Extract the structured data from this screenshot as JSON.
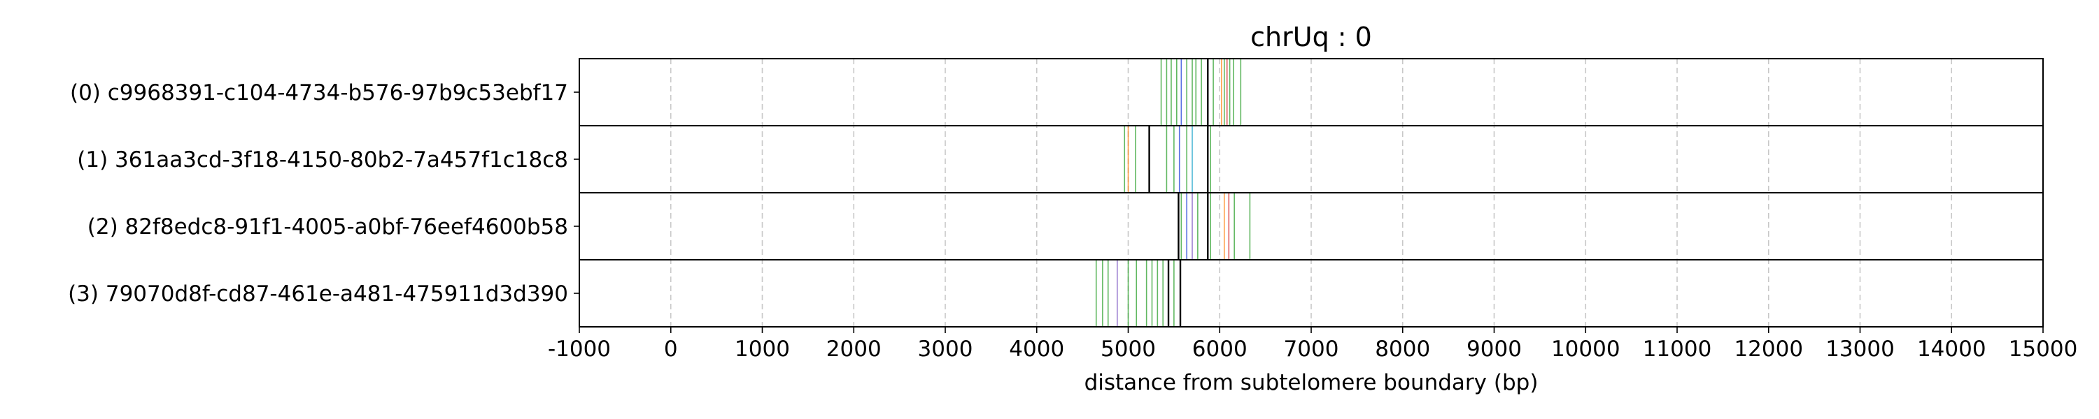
{
  "chart_data": {
    "type": "ribbon",
    "title": "chrUq : 0",
    "xlabel": "distance from subtelomere boundary (bp)",
    "ylabel": "",
    "xlim": [
      -1000,
      15000
    ],
    "xticks": [
      -1000,
      0,
      1000,
      2000,
      3000,
      4000,
      5000,
      6000,
      7000,
      8000,
      9000,
      10000,
      11000,
      12000,
      13000,
      14000,
      15000
    ],
    "tick_labels": [
      "-1000",
      "0",
      "1000",
      "2000",
      "3000",
      "4000",
      "5000",
      "6000",
      "7000",
      "8000",
      "9000",
      "10000",
      "11000",
      "12000",
      "13000",
      "14000",
      "15000"
    ],
    "grid": "x, dashed",
    "colors": {
      "green": "#2ca02c",
      "blue": "#1f3fd8",
      "orange": "#ff7f0e",
      "red": "#d62728",
      "purple": "#7e57c2",
      "cyan": "#17a2c8",
      "black": "#000000",
      "grid": "#c8c8c8"
    },
    "rows": [
      {
        "label": "(0) c9968391-c104-4734-b576-97b9c53ebf17",
        "marks": [
          {
            "x": 5360,
            "color": "green"
          },
          {
            "x": 5420,
            "color": "green"
          },
          {
            "x": 5470,
            "color": "green"
          },
          {
            "x": 5530,
            "color": "green"
          },
          {
            "x": 5580,
            "color": "blue"
          },
          {
            "x": 5640,
            "color": "green"
          },
          {
            "x": 5700,
            "color": "green"
          },
          {
            "x": 5740,
            "color": "green"
          },
          {
            "x": 5800,
            "color": "green"
          },
          {
            "x": 5870,
            "color": "black"
          },
          {
            "x": 5930,
            "color": "green"
          },
          {
            "x": 6020,
            "color": "orange"
          },
          {
            "x": 6050,
            "color": "green"
          },
          {
            "x": 6080,
            "color": "red"
          },
          {
            "x": 6110,
            "color": "green"
          },
          {
            "x": 6150,
            "color": "green"
          },
          {
            "x": 6230,
            "color": "green"
          }
        ]
      },
      {
        "label": "(1) 361aa3cd-3f18-4150-80b2-7a457f1c18c8",
        "marks": [
          {
            "x": 4960,
            "color": "green"
          },
          {
            "x": 5000,
            "color": "orange"
          },
          {
            "x": 5080,
            "color": "green"
          },
          {
            "x": 5230,
            "color": "black"
          },
          {
            "x": 5420,
            "color": "green"
          },
          {
            "x": 5500,
            "color": "green"
          },
          {
            "x": 5560,
            "color": "blue"
          },
          {
            "x": 5640,
            "color": "green"
          },
          {
            "x": 5700,
            "color": "cyan"
          },
          {
            "x": 5870,
            "color": "black"
          },
          {
            "x": 5900,
            "color": "green"
          }
        ]
      },
      {
        "label": "(2) 82f8edc8-91f1-4005-a0bf-76eef4600b58",
        "marks": [
          {
            "x": 5550,
            "color": "black"
          },
          {
            "x": 5580,
            "color": "green"
          },
          {
            "x": 5640,
            "color": "blue"
          },
          {
            "x": 5700,
            "color": "purple"
          },
          {
            "x": 5760,
            "color": "green"
          },
          {
            "x": 5870,
            "color": "black"
          },
          {
            "x": 5900,
            "color": "green"
          },
          {
            "x": 6050,
            "color": "orange"
          },
          {
            "x": 6100,
            "color": "red"
          },
          {
            "x": 6160,
            "color": "green"
          },
          {
            "x": 6330,
            "color": "green"
          }
        ]
      },
      {
        "label": "(3) 79070d8f-cd87-461e-a481-475911d3d390",
        "marks": [
          {
            "x": 4650,
            "color": "green"
          },
          {
            "x": 4720,
            "color": "green"
          },
          {
            "x": 4780,
            "color": "green"
          },
          {
            "x": 4880,
            "color": "purple"
          },
          {
            "x": 5000,
            "color": "green"
          },
          {
            "x": 5090,
            "color": "green"
          },
          {
            "x": 5200,
            "color": "green"
          },
          {
            "x": 5260,
            "color": "green"
          },
          {
            "x": 5320,
            "color": "green"
          },
          {
            "x": 5380,
            "color": "green"
          },
          {
            "x": 5440,
            "color": "black"
          },
          {
            "x": 5500,
            "color": "green"
          },
          {
            "x": 5570,
            "color": "black"
          }
        ]
      }
    ]
  }
}
